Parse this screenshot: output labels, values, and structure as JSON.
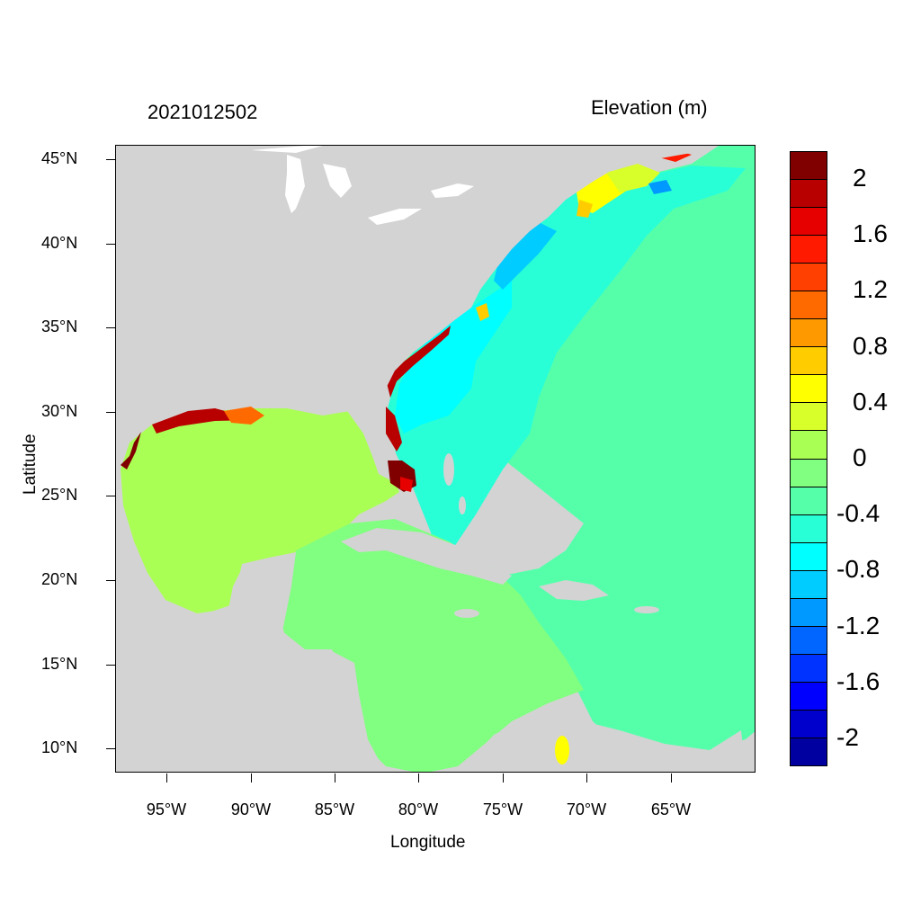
{
  "title_left": "2021012502",
  "title_right": "Elevation (m)",
  "x_axis_title": "Longitude",
  "y_axis_title": "Latitude",
  "lat_ticks": [
    "45°N",
    "40°N",
    "35°N",
    "30°N",
    "25°N",
    "20°N",
    "15°N",
    "10°N"
  ],
  "lon_ticks": [
    "95°W",
    "90°W",
    "85°W",
    "80°W",
    "75°W",
    "70°W",
    "65°W"
  ],
  "colorbar": {
    "colors": [
      "#800000",
      "#b80000",
      "#e60000",
      "#ff1a00",
      "#ff4000",
      "#ff6a00",
      "#ff9900",
      "#ffcc00",
      "#ffff00",
      "#d8ff29",
      "#aaff55",
      "#80ff80",
      "#55ffaa",
      "#29ffd6",
      "#00ffff",
      "#00ccff",
      "#0099ff",
      "#0066ff",
      "#0033ff",
      "#0000ff",
      "#0000cc",
      "#0000a0"
    ],
    "labels": [
      "2",
      "1.6",
      "1.2",
      "0.8",
      "0.4",
      "0",
      "-0.4",
      "-0.8",
      "-1.2",
      "-1.6",
      "-2"
    ]
  },
  "land_color": "#d3d3d3",
  "lake_color": "#ffffff"
}
